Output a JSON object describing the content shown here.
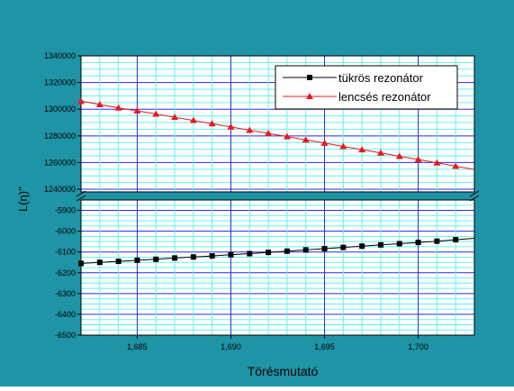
{
  "chart_data": {
    "type": "line",
    "title": "",
    "xlabel": "Törésmutató",
    "ylabel": "L(η)''",
    "grid": true,
    "axis_break": true,
    "legend_position": "top-right",
    "colors": {
      "background": "#1e94a6",
      "plot_background": "#ffffff",
      "major_grid": "#2a2ad8",
      "minor_grid": "#66f0ee",
      "axis": "#000000",
      "series1": "#000000",
      "series2": "#e8191f"
    },
    "x_range": [
      1.682,
      1.703
    ],
    "x_ticks": [
      {
        "value": 1.685,
        "label": "1,685"
      },
      {
        "value": 1.69,
        "label": "1,690"
      },
      {
        "value": 1.695,
        "label": "1,695"
      },
      {
        "value": 1.7,
        "label": "1,700"
      }
    ],
    "y_upper_range": [
      1238000,
      1340000
    ],
    "y_upper_ticks": [
      {
        "value": 1340000,
        "label": "1340000"
      },
      {
        "value": 1320000,
        "label": "1320000"
      },
      {
        "value": 1300000,
        "label": "1300000"
      },
      {
        "value": 1280000,
        "label": "1280000"
      },
      {
        "value": 1260000,
        "label": "1260000"
      },
      {
        "value": 1240000,
        "label": "1240000"
      }
    ],
    "y_lower_range": [
      -6500,
      -5850
    ],
    "y_lower_ticks": [
      {
        "value": -5900,
        "label": "-5900"
      },
      {
        "value": -6000,
        "label": "-6000"
      },
      {
        "value": -6100,
        "label": "-6100"
      },
      {
        "value": -6200,
        "label": "-6200"
      },
      {
        "value": -6300,
        "label": "-6300"
      },
      {
        "value": -6400,
        "label": "-6400"
      },
      {
        "value": -6500,
        "label": "-6500"
      }
    ],
    "series": [
      {
        "name": "tükrös rezonátor",
        "marker": "square",
        "panel": "lower",
        "x": [
          1.682,
          1.683,
          1.684,
          1.685,
          1.686,
          1.687,
          1.688,
          1.689,
          1.69,
          1.691,
          1.692,
          1.693,
          1.694,
          1.695,
          1.696,
          1.697,
          1.698,
          1.699,
          1.7,
          1.701,
          1.702
        ],
        "y": [
          -6155,
          -6150,
          -6145,
          -6140,
          -6135,
          -6129,
          -6124,
          -6119,
          -6113,
          -6108,
          -6102,
          -6096,
          -6090,
          -6084,
          -6078,
          -6072,
          -6066,
          -6060,
          -6054,
          -6048,
          -6041
        ]
      },
      {
        "name": "lencsés rezonátor",
        "marker": "triangle",
        "panel": "upper",
        "x": [
          1.682,
          1.683,
          1.684,
          1.685,
          1.686,
          1.687,
          1.688,
          1.689,
          1.69,
          1.691,
          1.692,
          1.693,
          1.694,
          1.695,
          1.696,
          1.697,
          1.698,
          1.699,
          1.7,
          1.701,
          1.702
        ],
        "y": [
          1306000,
          1303500,
          1301000,
          1298800,
          1296400,
          1294000,
          1291600,
          1289200,
          1286700,
          1284300,
          1281900,
          1279500,
          1277000,
          1274600,
          1272100,
          1269700,
          1267200,
          1264700,
          1262300,
          1259800,
          1257300
        ]
      }
    ]
  }
}
